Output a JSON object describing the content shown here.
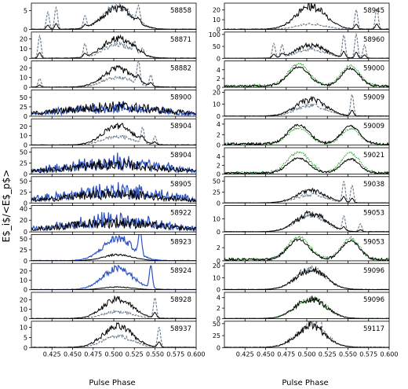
{
  "figure": {
    "ylabel": "E$_i$/<E$_p$>",
    "xlabel": "Pulse Phase",
    "xticks": [
      "0.425",
      "0.450",
      "0.475",
      "0.500",
      "0.525",
      "0.550",
      "0.575",
      "0.600"
    ]
  },
  "colors": {
    "black": "#000000",
    "gray": "#6f8191",
    "blue": "#2d52c4",
    "green": "#2ca02c"
  },
  "chart_data": {
    "type": "line",
    "xlim": [
      0.4,
      0.6
    ],
    "xlabel": "Pulse Phase",
    "ylabel": "E$_i$/<E$_p$>",
    "columns": [
      {
        "panels": [
          {
            "label": "58858",
            "ylim": [
              0,
              7
            ],
            "yticks": [
              0,
              5
            ],
            "main_peak": 6.0,
            "secondary": "gray",
            "secondary_peak": 6.5,
            "spikes": [
              [
                0.42,
                4.5
              ],
              [
                0.43,
                5.8
              ],
              [
                0.465,
                3.2
              ],
              [
                0.53,
                4.0
              ]
            ]
          },
          {
            "label": "58871",
            "ylim": [
              0,
              27
            ],
            "yticks": [
              0,
              10,
              20
            ],
            "main_peak": 22,
            "secondary": "gray",
            "secondary_peak": 15,
            "spikes": [
              [
                0.41,
                23
              ],
              [
                0.465,
                14
              ],
              [
                0.525,
                10
              ],
              [
                0.535,
                7
              ]
            ]
          },
          {
            "label": "58882",
            "ylim": [
              0,
              27
            ],
            "yticks": [
              0,
              10,
              20
            ],
            "main_peak": 20,
            "secondary": "gray",
            "secondary_peak": 11,
            "spikes": [
              [
                0.41,
                9
              ],
              [
                0.53,
                23
              ],
              [
                0.545,
                12
              ]
            ]
          },
          {
            "label": "58900",
            "ylim": [
              0,
              70
            ],
            "yticks": [
              0,
              25,
              50
            ],
            "main_peak": 48,
            "secondary": "blue",
            "secondary_peak": 42,
            "noise": true
          },
          {
            "label": "58904",
            "ylim": [
              0,
              28
            ],
            "yticks": [
              0,
              10,
              20
            ],
            "main_peak": 22,
            "secondary": "gray",
            "secondary_peak": 10,
            "spikes": [
              [
                0.535,
                17
              ],
              [
                0.55,
                9
              ]
            ]
          },
          {
            "label": "58904",
            "ylim": [
              0,
              60
            ],
            "yticks": [
              0,
              25,
              50
            ],
            "main_peak": 40,
            "secondary": "blue",
            "secondary_peak": 48,
            "noise": true
          },
          {
            "label": "58905",
            "ylim": [
              0,
              60
            ],
            "yticks": [
              0,
              25,
              50
            ],
            "main_peak": 38,
            "secondary": "blue",
            "secondary_peak": 52,
            "noise": true
          },
          {
            "label": "58922",
            "ylim": [
              0,
              45
            ],
            "yticks": [
              0,
              20,
              40
            ],
            "main_peak": 30,
            "secondary": "blue",
            "secondary_peak": 34,
            "noise": true
          },
          {
            "label": "58923",
            "ylim": [
              0,
              60
            ],
            "yticks": [
              0,
              25,
              50
            ],
            "main_peak": 15,
            "secondary": "blue",
            "secondary_peak": 55,
            "spikes": [
              [
                0.532,
                55
              ]
            ]
          },
          {
            "label": "58924",
            "ylim": [
              0,
              28
            ],
            "yticks": [
              0,
              10,
              20
            ],
            "main_peak": 3,
            "secondary": "blue",
            "secondary_peak": 24,
            "spikes": [
              [
                0.545,
                24
              ]
            ]
          },
          {
            "label": "58928",
            "ylim": [
              0,
              28
            ],
            "yticks": [
              0,
              10,
              20
            ],
            "main_peak": 22,
            "secondary": "gray",
            "secondary_peak": 8,
            "spikes": [
              [
                0.55,
                22
              ]
            ]
          },
          {
            "label": "58937",
            "ylim": [
              0,
              13
            ],
            "yticks": [
              0,
              5,
              10
            ],
            "main_peak": 11,
            "secondary": "gray",
            "secondary_peak": 6,
            "spikes": [
              [
                0.555,
                10
              ]
            ]
          }
        ]
      },
      {
        "panels": [
          {
            "label": "58945",
            "ylim": [
              0,
              27
            ],
            "yticks": [
              0,
              10,
              20
            ],
            "main_peak": 25,
            "secondary": "gray",
            "secondary_peak": 6,
            "spikes": [
              [
                0.56,
                20
              ],
              [
                0.585,
                22
              ]
            ]
          },
          {
            "label": "58960",
            "ylim": [
              0,
              110
            ],
            "yticks": [
              0,
              50,
              100
            ],
            "main_peak": 60,
            "secondary": "gray",
            "secondary_peak": 40,
            "spikes": [
              [
                0.46,
                60
              ],
              [
                0.47,
                50
              ],
              [
                0.545,
                95
              ],
              [
                0.56,
                100
              ],
              [
                0.57,
                55
              ]
            ]
          },
          {
            "label": "59000",
            "ylim": [
              0,
              6
            ],
            "yticks": [
              0,
              2,
              4
            ],
            "main_peak": 4.5,
            "secondary": "green",
            "secondary_peak": 5.2,
            "double": true
          },
          {
            "label": "59009",
            "ylim": [
              0,
              22
            ],
            "yticks": [
              0,
              10,
              20
            ],
            "main_peak": 15,
            "secondary": "gray",
            "secondary_peak": 10,
            "spikes": [
              [
                0.555,
                18
              ]
            ]
          },
          {
            "label": "59009",
            "ylim": [
              0,
              5
            ],
            "yticks": [
              0,
              2,
              4
            ],
            "main_peak": 3.8,
            "secondary": "green",
            "secondary_peak": 3.2,
            "double": true
          },
          {
            "label": "59021",
            "ylim": [
              0,
              6
            ],
            "yticks": [
              0,
              2,
              4
            ],
            "main_peak": 3.6,
            "secondary": "green",
            "secondary_peak": 5.0,
            "double": true
          },
          {
            "label": "59038",
            "ylim": [
              0,
              60
            ],
            "yticks": [
              0,
              25,
              50
            ],
            "main_peak": 30,
            "secondary": "gray",
            "secondary_peak": 20,
            "spikes": [
              [
                0.545,
                48
              ],
              [
                0.555,
                40
              ]
            ]
          },
          {
            "label": "59053",
            "ylim": [
              0,
              20
            ],
            "yticks": [
              0,
              10
            ],
            "main_peak": 15,
            "secondary": "gray",
            "secondary_peak": 14,
            "spikes": [
              [
                0.545,
                11
              ],
              [
                0.565,
                6
              ]
            ]
          },
          {
            "label": "59053",
            "ylim": [
              0,
              4
            ],
            "yticks": [
              0,
              2
            ],
            "main_peak": 3.2,
            "secondary": "green",
            "secondary_peak": 3.6,
            "double": true
          },
          {
            "label": "59096",
            "ylim": [
              0,
              22
            ],
            "yticks": [
              0,
              10,
              20
            ],
            "main_peak": 18,
            "secondary": "gray",
            "secondary_peak": 19
          },
          {
            "label": "59096",
            "ylim": [
              0,
              5
            ],
            "yticks": [
              0,
              2,
              4
            ],
            "main_peak": 4.0,
            "secondary": "green",
            "secondary_peak": 4.2
          },
          {
            "label": "59117",
            "ylim": [
              0,
              55
            ],
            "yticks": [
              0,
              25,
              50
            ],
            "main_peak": 45,
            "secondary": "gray",
            "secondary_peak": 48,
            "spikes": [
              [
                0.505,
                48
              ],
              [
                0.515,
                45
              ]
            ]
          }
        ]
      }
    ]
  }
}
